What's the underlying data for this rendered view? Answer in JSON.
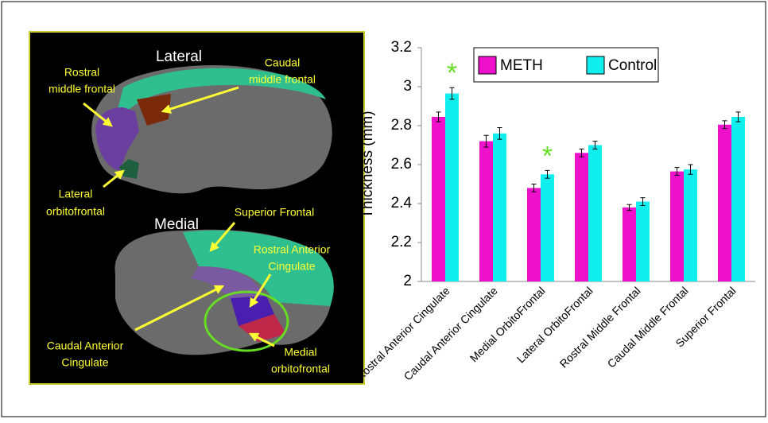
{
  "brain_panel": {
    "lateral_title": "Lateral",
    "medial_title": "Medial",
    "rostral_middle_frontal": [
      "Rostral",
      "middle frontal"
    ],
    "caudal_middle_frontal": [
      "Caudal",
      "middle frontal"
    ],
    "lateral_orbitofrontal": [
      "Lateral",
      "orbitofrontal"
    ],
    "superior_frontal": "Superior Frontal",
    "rostral_anterior_cingulate": [
      "Rostral Anterior",
      "Cingulate"
    ],
    "caudal_anterior_cingulate": [
      "Caudal Anterior",
      "Cingulate"
    ],
    "medial_orbitofrontal": [
      "Medial",
      "orbitofrontal"
    ]
  },
  "chart_data": {
    "type": "bar",
    "y_label": "Thickness (mm)",
    "categories": [
      "Rostral Anterior Cingulate",
      "Caudal Anterior Cingulate",
      "Medial OrbitoFrontal",
      "Lateral OrbitoFrontal",
      "Rostral Middle Frontal",
      "Caudal Middle Frontal",
      "Superior Frontal"
    ],
    "series": [
      {
        "name": "METH",
        "color": "#ee11cc",
        "values": [
          2.845,
          2.72,
          2.48,
          2.66,
          2.38,
          2.565,
          2.805
        ],
        "errors": [
          0.025,
          0.03,
          0.02,
          0.02,
          0.015,
          0.02,
          0.02
        ]
      },
      {
        "name": "Control",
        "color": "#11eeee",
        "values": [
          2.965,
          2.76,
          2.55,
          2.7,
          2.41,
          2.575,
          2.845
        ],
        "errors": [
          0.03,
          0.03,
          0.02,
          0.02,
          0.02,
          0.025,
          0.025
        ]
      }
    ],
    "significance_marker": "*",
    "significance_color": "#66dd22",
    "significant": [
      true,
      false,
      true,
      false,
      false,
      false,
      false
    ],
    "ylim": [
      2,
      3.2
    ],
    "yticks": [
      2,
      2.2,
      2.4,
      2.6,
      2.8,
      3,
      3.2
    ],
    "legend": "top"
  }
}
